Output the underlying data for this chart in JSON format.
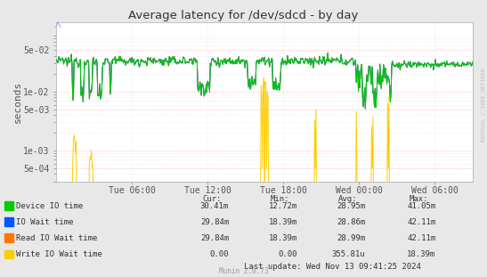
{
  "title": "Average latency for /dev/sdcd - by day",
  "ylabel": "seconds",
  "background_color": "#e8e8e8",
  "plot_bg_color": "#ffffff",
  "grid_color_major": "#ffaaaa",
  "grid_color_minor": "#dddddd",
  "yticks": [
    0.0005,
    0.001,
    0.005,
    0.01,
    0.05
  ],
  "ytick_labels": [
    "5e-04",
    "1e-03",
    "5e-03",
    "1e-02",
    "5e-02"
  ],
  "x_tick_labels": [
    "Tue 06:00",
    "Tue 12:00",
    "Tue 18:00",
    "Wed 00:00",
    "Wed 06:00"
  ],
  "legend_entries": [
    "Device IO time",
    "IO Wait time",
    "Read IO Wait time",
    "Write IO Wait time"
  ],
  "legend_colors": [
    "#00cc00",
    "#0055ff",
    "#ff7700",
    "#ffcc00"
  ],
  "cur_values": [
    "30.41m",
    "29.84m",
    "29.84m",
    "0.00"
  ],
  "min_values": [
    "12.72m",
    "18.39m",
    "18.39m",
    "0.00"
  ],
  "avg_values": [
    "28.95m",
    "28.86m",
    "28.99m",
    "355.81u"
  ],
  "max_values": [
    "41.05m",
    "42.11m",
    "42.11m",
    "18.39m"
  ],
  "muninversion": "Munin 2.0.73",
  "rrdtool_label": "RRDTOOL / TOBI OETIKER",
  "num_points": 600,
  "base_value": 0.033,
  "device_color": "#00cc00",
  "iowait_color": "#0055ff",
  "read_color": "#ff7700",
  "write_color": "#ffcc00"
}
